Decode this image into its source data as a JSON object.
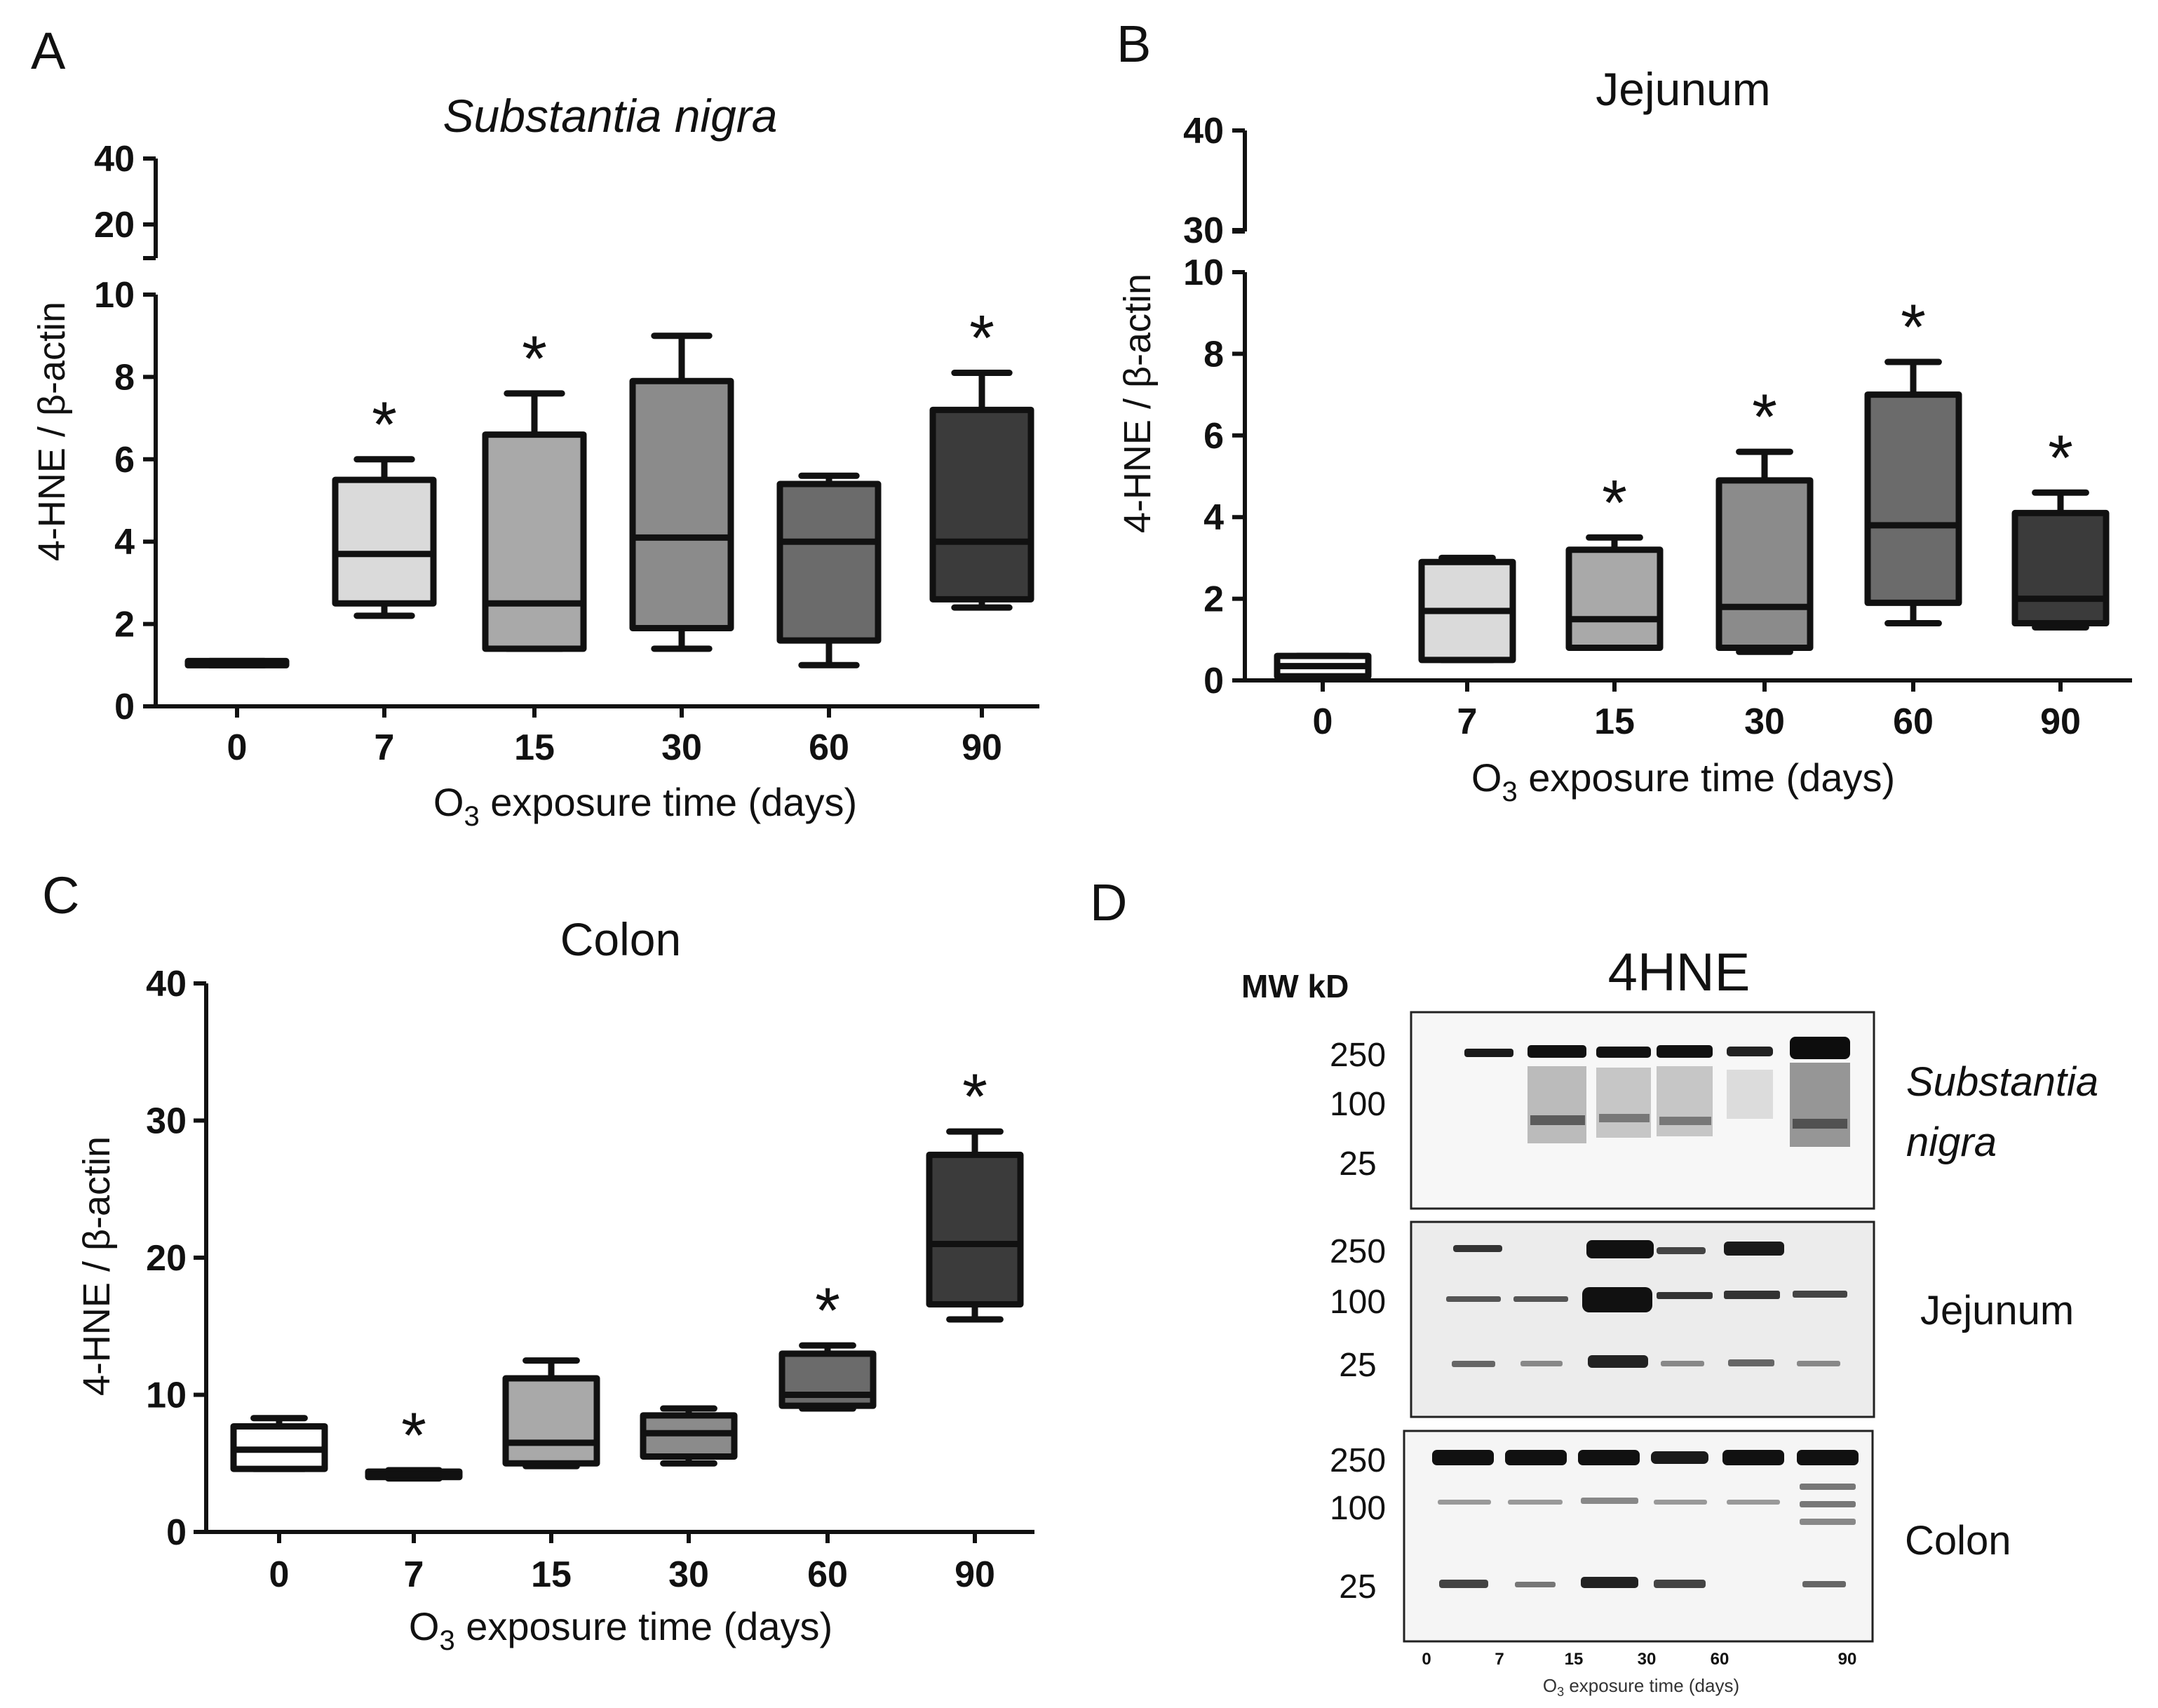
{
  "chart_data": [
    {
      "panel": "A",
      "type": "boxplot",
      "title": "Substantia nigra",
      "title_italic": true,
      "xlabel_main": "O",
      "xlabel_sub": "3",
      "xlabel_rest": " exposure time (days)",
      "ylabel": "4-HNE / β-actin",
      "categories": [
        "0",
        "7",
        "15",
        "30",
        "60",
        "90"
      ],
      "y_ticks": [
        "0",
        "2",
        "4",
        "6",
        "8",
        "10"
      ],
      "y_ticks_upper": [
        "20",
        "40"
      ],
      "axis_break": true,
      "ylim": [
        0,
        10
      ],
      "ylim_upper": [
        10,
        40
      ],
      "fills": [
        "#c8c8c8",
        "#dadada",
        "#a9a9a9",
        "#8b8b8b",
        "#6b6b6b",
        "#3b3b3b"
      ],
      "series": [
        {
          "name": "0",
          "min": 1.0,
          "q1": 1.0,
          "median": 1.05,
          "q3": 1.1,
          "max": 1.1,
          "significant": false
        },
        {
          "name": "7",
          "min": 2.2,
          "q1": 2.5,
          "median": 3.7,
          "q3": 5.5,
          "max": 6.0,
          "significant": true
        },
        {
          "name": "15",
          "min": 1.4,
          "q1": 1.4,
          "median": 2.5,
          "q3": 6.6,
          "max": 7.6,
          "significant": true
        },
        {
          "name": "30",
          "min": 1.4,
          "q1": 1.9,
          "median": 4.1,
          "q3": 7.9,
          "max": 9.0,
          "significant": false
        },
        {
          "name": "60",
          "min": 1.0,
          "q1": 1.6,
          "median": 4.0,
          "q3": 5.4,
          "max": 5.6,
          "significant": false
        },
        {
          "name": "90",
          "min": 2.4,
          "q1": 2.6,
          "median": 4.0,
          "q3": 7.2,
          "max": 8.1,
          "significant": true
        }
      ],
      "marker": "*"
    },
    {
      "panel": "B",
      "type": "boxplot",
      "title": "Jejunum",
      "title_italic": false,
      "xlabel_main": "O",
      "xlabel_sub": "3",
      "xlabel_rest": " exposure time (days)",
      "ylabel": "4-HNE / β-actin",
      "categories": [
        "0",
        "7",
        "15",
        "30",
        "60",
        "90"
      ],
      "y_ticks": [
        "0",
        "2",
        "4",
        "6",
        "8",
        "10"
      ],
      "y_ticks_upper": [
        "30",
        "40"
      ],
      "axis_break": true,
      "ylim": [
        0,
        10
      ],
      "ylim_upper": [
        30,
        40
      ],
      "fills": [
        "#ffffff",
        "#dadada",
        "#a9a9a9",
        "#8b8b8b",
        "#6b6b6b",
        "#3b3b3b"
      ],
      "series": [
        {
          "name": "0",
          "min": 0.1,
          "q1": 0.1,
          "median": 0.35,
          "q3": 0.6,
          "max": 0.6,
          "significant": false
        },
        {
          "name": "7",
          "min": 0.5,
          "q1": 0.5,
          "median": 1.7,
          "q3": 2.9,
          "max": 3.0,
          "significant": false
        },
        {
          "name": "15",
          "min": 0.8,
          "q1": 0.8,
          "median": 1.5,
          "q3": 3.2,
          "max": 3.5,
          "significant": true
        },
        {
          "name": "30",
          "min": 0.7,
          "q1": 0.8,
          "median": 1.8,
          "q3": 4.9,
          "max": 5.6,
          "significant": true
        },
        {
          "name": "60",
          "min": 1.4,
          "q1": 1.9,
          "median": 3.8,
          "q3": 7.0,
          "max": 7.8,
          "significant": true
        },
        {
          "name": "90",
          "min": 1.3,
          "q1": 1.4,
          "median": 2.0,
          "q3": 4.1,
          "max": 4.6,
          "significant": true
        }
      ],
      "marker": "*"
    },
    {
      "panel": "C",
      "type": "boxplot",
      "title": "Colon",
      "title_italic": false,
      "xlabel_main": "O",
      "xlabel_sub": "3",
      "xlabel_rest": " exposure time (days)",
      "ylabel": "4-HNE / β-actin",
      "categories": [
        "0",
        "7",
        "15",
        "30",
        "60",
        "90"
      ],
      "y_ticks": [
        "0",
        "10",
        "20",
        "30",
        "40"
      ],
      "axis_break": false,
      "ylim": [
        0,
        40
      ],
      "fills": [
        "#ffffff",
        "#dadada",
        "#a9a9a9",
        "#8b8b8b",
        "#6b6b6b",
        "#3b3b3b"
      ],
      "series": [
        {
          "name": "0",
          "min": 4.6,
          "q1": 4.6,
          "median": 6.0,
          "q3": 7.7,
          "max": 8.3,
          "significant": false
        },
        {
          "name": "7",
          "min": 3.9,
          "q1": 4.0,
          "median": 4.2,
          "q3": 4.4,
          "max": 4.5,
          "significant": true
        },
        {
          "name": "15",
          "min": 4.8,
          "q1": 5.0,
          "median": 6.5,
          "q3": 11.2,
          "max": 12.5,
          "significant": false
        },
        {
          "name": "30",
          "min": 5.0,
          "q1": 5.5,
          "median": 7.2,
          "q3": 8.5,
          "max": 9.0,
          "significant": false
        },
        {
          "name": "60",
          "min": 9.0,
          "q1": 9.2,
          "median": 10.0,
          "q3": 13.0,
          "max": 13.6,
          "significant": true
        },
        {
          "name": "90",
          "min": 15.5,
          "q1": 16.6,
          "median": 21.0,
          "q3": 27.5,
          "max": 29.2,
          "significant": true
        }
      ],
      "marker": "*"
    }
  ],
  "blot": {
    "panel": "D",
    "title": "4HNE",
    "mw_header": "MW kD",
    "mw_ticks": [
      "250",
      "100",
      "25"
    ],
    "strips": [
      {
        "label_line1": "Substantia",
        "label_line2": "nigra",
        "italic": true
      },
      {
        "label_line1": "Jejunum",
        "label_line2": "",
        "italic": false
      },
      {
        "label_line1": "Colon",
        "label_line2": "",
        "italic": false
      }
    ],
    "lanes": [
      "0",
      "7",
      "15",
      "30",
      "60",
      "90"
    ],
    "xlabel_main": "O",
    "xlabel_sub": "3",
    "xlabel_rest": " exposure time (days)"
  }
}
